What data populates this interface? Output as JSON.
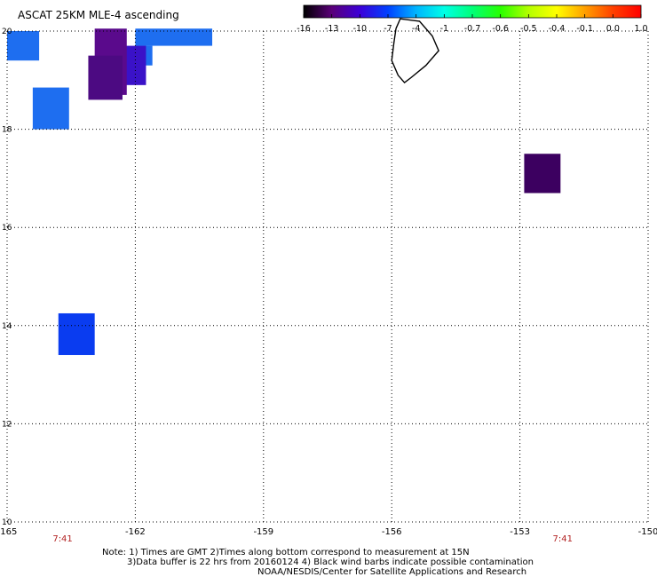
{
  "title": "ASCAT 25KM MLE-4 ascending",
  "colorbar": {
    "tick_labels": [
      "-16",
      "-13",
      "-10",
      "-7",
      "-4",
      "-1",
      "-0.7",
      "-0.6",
      "-0.5",
      "-0.4",
      "-0.1",
      "0.0",
      "1.0"
    ],
    "colors": [
      "#000000",
      "#5a0078",
      "#3c00d8",
      "#0040ff",
      "#00b4ff",
      "#00ffe6",
      "#00ff78",
      "#28ff00",
      "#b4ff00",
      "#ffff00",
      "#ffa000",
      "#ff4000",
      "#ff0000"
    ]
  },
  "axes": {
    "x_ticks": [
      "-165",
      "-162",
      "-159",
      "-156",
      "-153",
      "-150"
    ],
    "y_ticks": [
      "20",
      "18",
      "16",
      "14",
      "12",
      "10"
    ],
    "x_range": [
      -165,
      -150
    ],
    "y_range": [
      10,
      20
    ],
    "grid": "dotted"
  },
  "time_labels": [
    {
      "text": "7:41",
      "lon": -163.7
    },
    {
      "text": "7:41",
      "lon": -152.0
    }
  ],
  "colors": {
    "time_label": "#b22222",
    "grid": "#000000",
    "coastline": "#000000"
  },
  "cells": [
    {
      "lon": [
        -165,
        -164.25
      ],
      "lat": [
        19.4,
        20.0
      ],
      "color": "#1e6ef0"
    },
    {
      "lon": [
        -164.4,
        -163.55
      ],
      "lat": [
        18.0,
        18.85
      ],
      "color": "#1e6ef0"
    },
    {
      "lon": [
        -163.8,
        -162.95
      ],
      "lat": [
        13.4,
        14.25
      ],
      "color": "#0a3cf0"
    },
    {
      "lon": [
        -162.0,
        -160.2
      ],
      "lat": [
        19.7,
        20.05
      ],
      "color": "#1e6ef0"
    },
    {
      "lon": [
        -162.0,
        -161.6
      ],
      "lat": [
        19.3,
        19.7
      ],
      "color": "#1e6ef0"
    },
    {
      "lon": [
        -162.3,
        -161.75
      ],
      "lat": [
        18.9,
        19.7
      ],
      "color": "#3a12c8"
    },
    {
      "lon": [
        -162.95,
        -162.2
      ],
      "lat": [
        18.7,
        20.05
      ],
      "color": "#5a0a8c"
    },
    {
      "lon": [
        -163.1,
        -162.3
      ],
      "lat": [
        18.6,
        19.5
      ],
      "color": "#4c0a82"
    },
    {
      "lon": [
        -152.9,
        -152.05
      ],
      "lat": [
        16.7,
        17.5
      ],
      "color": "#3c0060"
    }
  ],
  "coastline": [
    [
      -155.9,
      20.05
    ],
    [
      -155.8,
      20.25
    ],
    [
      -155.35,
      20.2
    ],
    [
      -155.05,
      19.9
    ],
    [
      -154.9,
      19.6
    ],
    [
      -155.2,
      19.3
    ],
    [
      -155.55,
      19.05
    ],
    [
      -155.7,
      18.95
    ],
    [
      -155.85,
      19.1
    ],
    [
      -156.0,
      19.4
    ],
    [
      -155.95,
      19.75
    ],
    [
      -155.9,
      20.05
    ]
  ],
  "notes": [
    "Note: 1) Times are GMT 2)Times along bottom correspond to measurement at 15N",
    "3)Data buffer is 22 hrs from 20160124 4) Black wind barbs indicate possible contamination",
    "NOAA/NESDIS/Center for Satellite Applications and Research"
  ]
}
